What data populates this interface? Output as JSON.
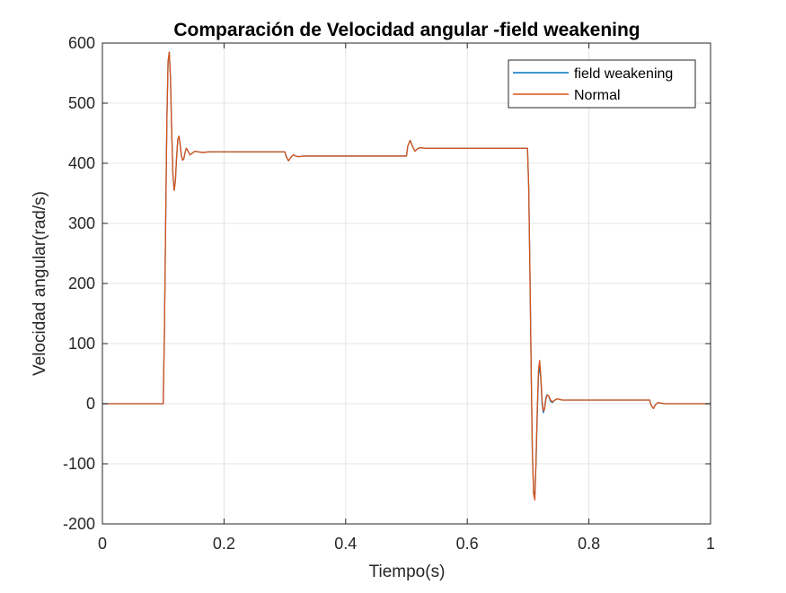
{
  "chart_data": {
    "type": "line",
    "title": "Comparación de Velocidad angular -field weakening",
    "xlabel": "Tiempo(s)",
    "ylabel": "Velocidad angular(rad/s)",
    "xlim": [
      0,
      1
    ],
    "ylim": [
      -200,
      600
    ],
    "xticks": [
      0,
      0.2,
      0.4,
      0.6,
      0.8,
      1
    ],
    "xtick_labels": [
      "0",
      "0.2",
      "0.4",
      "0.6",
      "0.8",
      "1"
    ],
    "yticks": [
      -200,
      -100,
      0,
      100,
      200,
      300,
      400,
      500,
      600
    ],
    "ytick_labels": [
      "-200",
      "-100",
      "0",
      "100",
      "200",
      "300",
      "400",
      "500",
      "600"
    ],
    "grid": true,
    "legend_position": "top-right",
    "series": [
      {
        "name": "field weakening",
        "color": "#0072BD",
        "x": [
          0,
          0.1,
          0.102,
          0.104,
          0.106,
          0.108,
          0.11,
          0.112,
          0.114,
          0.116,
          0.118,
          0.12,
          0.122,
          0.124,
          0.126,
          0.128,
          0.13,
          0.132,
          0.134,
          0.136,
          0.138,
          0.14,
          0.144,
          0.148,
          0.152,
          0.158,
          0.165,
          0.175,
          0.2,
          0.3,
          0.302,
          0.306,
          0.31,
          0.314,
          0.318,
          0.322,
          0.33,
          0.34,
          0.35,
          0.4,
          0.5,
          0.502,
          0.506,
          0.51,
          0.514,
          0.518,
          0.522,
          0.53,
          0.54,
          0.55,
          0.6,
          0.699,
          0.701,
          0.703,
          0.705,
          0.707,
          0.709,
          0.711,
          0.713,
          0.715,
          0.717,
          0.719,
          0.721,
          0.723,
          0.725,
          0.727,
          0.729,
          0.731,
          0.734,
          0.737,
          0.74,
          0.744,
          0.748,
          0.752,
          0.757,
          0.763,
          0.77,
          0.8,
          0.9,
          0.902,
          0.906,
          0.91,
          0.914,
          0.918,
          0.925,
          0.935,
          1
        ],
        "values": [
          0,
          0,
          120,
          300,
          470,
          570,
          585,
          540,
          450,
          380,
          355,
          370,
          410,
          440,
          445,
          430,
          412,
          405,
          408,
          418,
          425,
          422,
          414,
          417,
          420,
          419,
          418,
          419,
          419,
          419,
          412,
          404,
          410,
          414,
          412,
          411,
          412,
          412,
          412,
          412,
          412,
          428,
          438,
          428,
          420,
          424,
          426,
          425,
          425,
          425,
          425,
          425,
          360,
          220,
          60,
          -80,
          -145,
          -155,
          -100,
          -20,
          45,
          65,
          40,
          0,
          -15,
          -8,
          8,
          15,
          12,
          4,
          2,
          6,
          8,
          7,
          6,
          6,
          6,
          6,
          6,
          -2,
          -8,
          -1,
          2,
          1,
          0,
          0,
          0
        ]
      },
      {
        "name": "Normal",
        "color": "#D95319",
        "x": [
          0,
          0.1,
          0.102,
          0.104,
          0.106,
          0.108,
          0.11,
          0.112,
          0.114,
          0.116,
          0.118,
          0.12,
          0.122,
          0.124,
          0.126,
          0.128,
          0.13,
          0.132,
          0.134,
          0.136,
          0.138,
          0.14,
          0.144,
          0.148,
          0.152,
          0.158,
          0.165,
          0.175,
          0.2,
          0.3,
          0.302,
          0.306,
          0.31,
          0.314,
          0.318,
          0.322,
          0.33,
          0.34,
          0.35,
          0.4,
          0.5,
          0.502,
          0.506,
          0.51,
          0.514,
          0.518,
          0.522,
          0.53,
          0.54,
          0.55,
          0.6,
          0.699,
          0.701,
          0.703,
          0.705,
          0.707,
          0.709,
          0.711,
          0.713,
          0.715,
          0.717,
          0.719,
          0.721,
          0.723,
          0.725,
          0.727,
          0.729,
          0.731,
          0.734,
          0.737,
          0.74,
          0.744,
          0.748,
          0.752,
          0.757,
          0.763,
          0.77,
          0.8,
          0.9,
          0.902,
          0.906,
          0.91,
          0.914,
          0.918,
          0.925,
          0.935,
          1
        ],
        "values": [
          0,
          0,
          120,
          300,
          470,
          570,
          585,
          540,
          450,
          380,
          355,
          370,
          410,
          440,
          445,
          430,
          412,
          405,
          408,
          418,
          425,
          422,
          414,
          417,
          420,
          419,
          418,
          419,
          419,
          419,
          412,
          404,
          410,
          414,
          412,
          411,
          412,
          412,
          412,
          412,
          412,
          428,
          438,
          428,
          420,
          424,
          426,
          425,
          425,
          425,
          425,
          425,
          360,
          220,
          60,
          -80,
          -150,
          -160,
          -95,
          -10,
          55,
          72,
          45,
          5,
          -12,
          -10,
          5,
          14,
          13,
          6,
          3,
          6,
          8,
          7,
          6,
          6,
          6,
          6,
          6,
          -2,
          -8,
          -1,
          2,
          1,
          0,
          0,
          0
        ]
      }
    ]
  }
}
